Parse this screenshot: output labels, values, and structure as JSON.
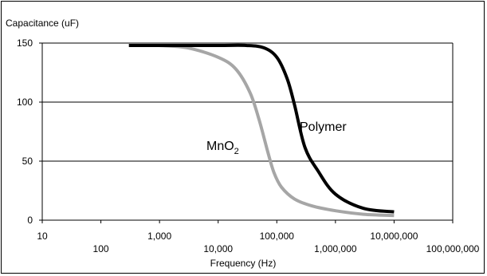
{
  "chart_data": {
    "type": "line",
    "title": "",
    "ylabel": "Capacitance (uF)",
    "xlabel": "Frequency (Hz)",
    "x_scale": "log",
    "xlim": [
      10,
      100000000
    ],
    "ylim": [
      0,
      150
    ],
    "y_ticks": [
      0,
      50,
      100,
      150
    ],
    "y_tick_labels": [
      "0",
      "50",
      "100",
      "150"
    ],
    "x_ticks": [
      10,
      100,
      1000,
      10000,
      100000,
      1000000,
      10000000,
      100000000
    ],
    "x_tick_labels": [
      "10",
      "100",
      "1,000",
      "10,000",
      "100,000",
      "1,000,000",
      "10,000,000",
      "100,000,000"
    ],
    "grid": "horizontal",
    "legend": "none",
    "series": [
      {
        "name": "Polymer",
        "label_parts": [
          "Polymer"
        ],
        "color": "#000000",
        "x": [
          300,
          1000,
          10000,
          30000,
          60000,
          100000,
          150000,
          200000,
          300000,
          500000,
          1000000,
          3000000,
          10000000
        ],
        "y": [
          148,
          148,
          148,
          148,
          146,
          138,
          120,
          98,
          62,
          42,
          22,
          10,
          7
        ]
      },
      {
        "name": "MnO2",
        "label_parts": [
          "MnO",
          "2"
        ],
        "color": "#a6a6a6",
        "x": [
          1000,
          3000,
          10000,
          20000,
          35000,
          50000,
          70000,
          90000,
          120000,
          200000,
          400000,
          1000000,
          3000000,
          10000000
        ],
        "y": [
          148,
          146,
          138,
          128,
          108,
          85,
          58,
          40,
          28,
          18,
          12,
          8,
          5,
          4
        ]
      }
    ]
  }
}
